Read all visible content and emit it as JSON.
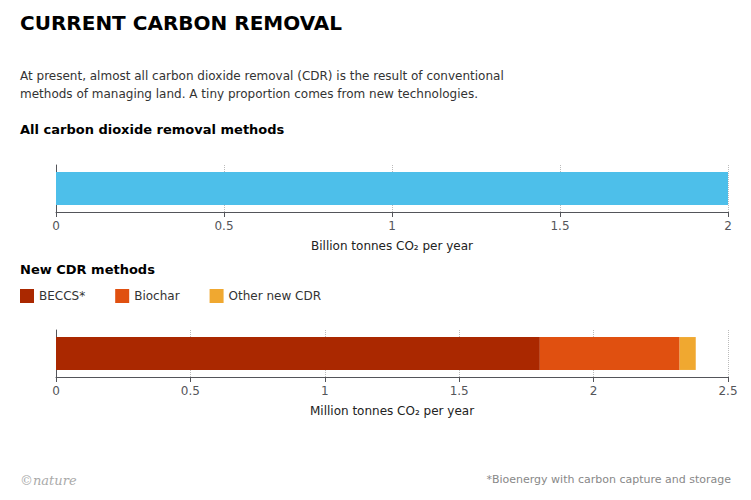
{
  "title": "CURRENT CARBON REMOVAL",
  "subtitle": "At present, almost all carbon dioxide removal (CDR) is the result of conventional\nmethods of managing land. A tiny proportion comes from new technologies.",
  "annotations": [
    "©nature",
    "*Bioenergy with carbon capture and storage"
  ],
  "chart_data": [
    {
      "type": "bar",
      "orientation": "horizontal",
      "title": "All carbon dioxide removal methods",
      "categories": [
        null
      ],
      "values": [
        2.0
      ],
      "color": "#4dbfea",
      "xlim": [
        0,
        2.0
      ],
      "xticks": [
        0,
        0.5,
        1.0,
        1.5,
        2.0
      ],
      "xlabel": "Billion tonnes CO₂ per year",
      "grid": true,
      "tick_labels": "x"
    },
    {
      "type": "bar",
      "orientation": "horizontal",
      "stacked": true,
      "title": "New CDR methods",
      "categories": [
        null
      ],
      "series": [
        {
          "name": "BECCS*",
          "color": "#aa2800",
          "values": [
            1.8
          ]
        },
        {
          "name": "Biochar",
          "color": "#e05010",
          "values": [
            0.52
          ]
        },
        {
          "name": "Other new CDR",
          "color": "#f0a830",
          "values": [
            0.06
          ]
        }
      ],
      "xlim": [
        0,
        2.5
      ],
      "xticks": [
        0,
        0.5,
        1.0,
        1.5,
        2.0,
        2.5
      ],
      "xlabel": "Million tonnes CO₂ per year",
      "grid": true,
      "legend": "top-left",
      "tick_labels": "x"
    }
  ]
}
